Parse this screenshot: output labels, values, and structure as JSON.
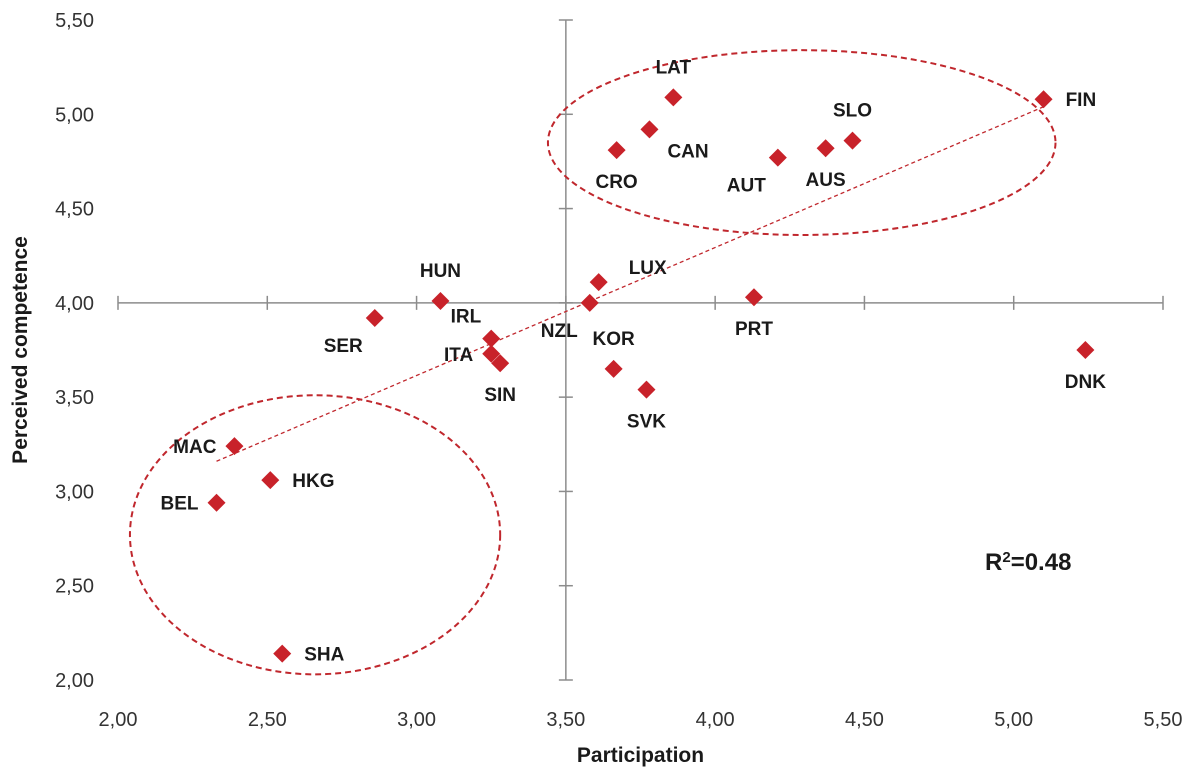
{
  "chart_data": {
    "type": "scatter",
    "xlabel": "Participation",
    "ylabel": "Perceived competence",
    "xlim": [
      2.0,
      5.5
    ],
    "ylim": [
      2.0,
      5.5
    ],
    "x_ticks": [
      "2,00",
      "2,50",
      "3,00",
      "3,50",
      "4,00",
      "4,50",
      "5,00",
      "5,50"
    ],
    "y_ticks": [
      "2,00",
      "2,50",
      "3,00",
      "3,50",
      "4,00",
      "4,50",
      "5,00",
      "5,50"
    ],
    "axis_cross": {
      "x": 3.5,
      "y": 4.0
    },
    "grid": false,
    "marker_color": "#c8222a",
    "trend_color": "#c0272d",
    "annotation": "R²=0.48",
    "trendline": {
      "x0": 2.33,
      "y0": 3.16,
      "x1": 5.1,
      "y1": 5.04
    },
    "ellipses": [
      {
        "cx": 4.29,
        "cy": 4.85,
        "rx": 0.85,
        "ry": 0.49
      },
      {
        "cx": 2.66,
        "cy": 2.77,
        "rx": 0.62,
        "ry": 0.74
      }
    ],
    "points": [
      {
        "label": "LAT",
        "x": 3.86,
        "y": 5.09,
        "lp": "above"
      },
      {
        "label": "FIN",
        "x": 5.1,
        "y": 5.08,
        "lp": "right"
      },
      {
        "label": "SLO",
        "x": 4.46,
        "y": 4.86,
        "lp": "above"
      },
      {
        "label": "CAN",
        "x": 3.78,
        "y": 4.92,
        "lp": "right-below"
      },
      {
        "label": "AUS",
        "x": 4.37,
        "y": 4.82,
        "lp": "below"
      },
      {
        "label": "CRO",
        "x": 3.67,
        "y": 4.81,
        "lp": "below"
      },
      {
        "label": "AUT",
        "x": 4.21,
        "y": 4.77,
        "lp": "left-below"
      },
      {
        "label": "LUX",
        "x": 3.61,
        "y": 4.11,
        "lp": "right-above"
      },
      {
        "label": "HUN",
        "x": 3.08,
        "y": 4.01,
        "lp": "above"
      },
      {
        "label": "NZL",
        "x": 3.58,
        "y": 4.0,
        "lp": "left-below"
      },
      {
        "label": "PRT",
        "x": 4.13,
        "y": 4.03,
        "lp": "below"
      },
      {
        "label": "SER",
        "x": 2.86,
        "y": 3.92,
        "lp": "left-below"
      },
      {
        "label": "IRL",
        "x": 3.25,
        "y": 3.81,
        "lp": "left-above"
      },
      {
        "label": "ITA",
        "x": 3.25,
        "y": 3.73,
        "lp": "left"
      },
      {
        "label": "SIN",
        "x": 3.28,
        "y": 3.68,
        "lp": "below"
      },
      {
        "label": "KOR",
        "x": 3.66,
        "y": 3.65,
        "lp": "above"
      },
      {
        "label": "DNK",
        "x": 5.24,
        "y": 3.75,
        "lp": "below"
      },
      {
        "label": "SVK",
        "x": 3.77,
        "y": 3.54,
        "lp": "below"
      },
      {
        "label": "MAC",
        "x": 2.39,
        "y": 3.24,
        "lp": "left"
      },
      {
        "label": "HKG",
        "x": 2.51,
        "y": 3.06,
        "lp": "right"
      },
      {
        "label": "BEL",
        "x": 2.33,
        "y": 2.94,
        "lp": "left"
      },
      {
        "label": "SHA",
        "x": 2.55,
        "y": 2.14,
        "lp": "right"
      }
    ]
  }
}
